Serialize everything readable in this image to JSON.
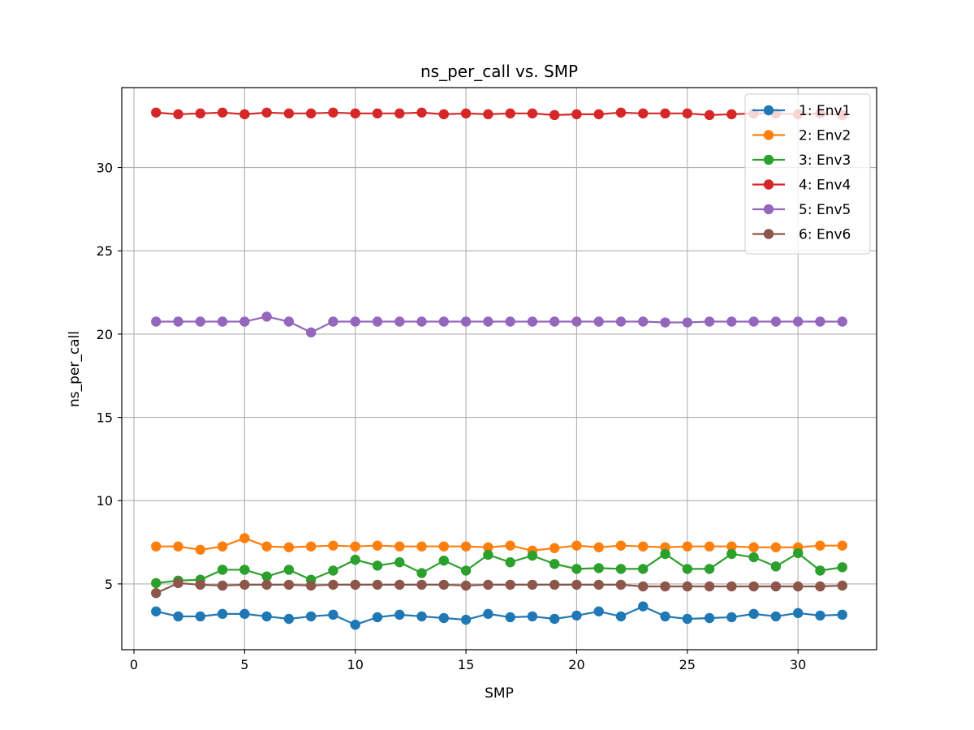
{
  "chart_data": {
    "type": "line",
    "title": "ns_per_call vs. SMP",
    "xlabel": "SMP",
    "ylabel": "ns_per_call",
    "xlim": [
      -0.55,
      33.55
    ],
    "ylim": [
      1.05,
      34.8
    ],
    "xticks": [
      0,
      5,
      10,
      15,
      20,
      25,
      30
    ],
    "yticks": [
      5,
      10,
      15,
      20,
      25,
      30
    ],
    "grid": true,
    "legend_position": "top-right",
    "markers": "circle",
    "x": [
      1,
      2,
      3,
      4,
      5,
      6,
      7,
      8,
      9,
      10,
      11,
      12,
      13,
      14,
      15,
      16,
      17,
      18,
      19,
      20,
      21,
      22,
      23,
      24,
      25,
      26,
      27,
      28,
      29,
      30,
      31,
      32
    ],
    "series": [
      {
        "name": "1: Env1",
        "color": "#1f77b4",
        "values": [
          3.35,
          3.05,
          3.05,
          3.2,
          3.2,
          3.05,
          2.9,
          3.05,
          3.15,
          2.55,
          3.0,
          3.15,
          3.05,
          2.95,
          2.85,
          3.2,
          3.0,
          3.05,
          2.9,
          3.1,
          3.35,
          3.05,
          3.65,
          3.05,
          2.9,
          2.95,
          3.0,
          3.2,
          3.05,
          3.25,
          3.1,
          3.15
        ]
      },
      {
        "name": "2: Env2",
        "color": "#ff7f0e",
        "values": [
          7.25,
          7.25,
          7.05,
          7.25,
          7.75,
          7.25,
          7.2,
          7.25,
          7.3,
          7.25,
          7.3,
          7.25,
          7.25,
          7.25,
          7.25,
          7.2,
          7.3,
          7.0,
          7.15,
          7.3,
          7.2,
          7.3,
          7.25,
          7.2,
          7.25,
          7.25,
          7.25,
          7.2,
          7.2,
          7.2,
          7.3,
          7.3
        ]
      },
      {
        "name": "3: Env3",
        "color": "#2ca02c",
        "values": [
          5.05,
          5.2,
          5.25,
          5.85,
          5.85,
          5.45,
          5.85,
          5.25,
          5.8,
          6.45,
          6.1,
          6.3,
          5.65,
          6.4,
          5.8,
          6.75,
          6.3,
          6.7,
          6.2,
          5.9,
          5.95,
          5.9,
          5.9,
          6.8,
          5.9,
          5.9,
          6.8,
          6.6,
          6.05,
          6.85,
          5.8,
          6.0
        ]
      },
      {
        "name": "4: Env4",
        "color": "#d62728",
        "values": [
          33.3,
          33.2,
          33.25,
          33.3,
          33.2,
          33.3,
          33.25,
          33.25,
          33.3,
          33.25,
          33.25,
          33.25,
          33.3,
          33.2,
          33.25,
          33.2,
          33.25,
          33.25,
          33.15,
          33.2,
          33.2,
          33.3,
          33.25,
          33.25,
          33.25,
          33.15,
          33.2,
          33.25,
          33.25,
          33.2,
          33.25,
          33.15
        ]
      },
      {
        "name": "5: Env5",
        "color": "#9467bd",
        "values": [
          20.75,
          20.75,
          20.75,
          20.75,
          20.75,
          21.05,
          20.75,
          20.1,
          20.75,
          20.75,
          20.75,
          20.75,
          20.75,
          20.75,
          20.75,
          20.75,
          20.75,
          20.75,
          20.75,
          20.75,
          20.75,
          20.75,
          20.75,
          20.7,
          20.7,
          20.75,
          20.75,
          20.75,
          20.75,
          20.75,
          20.75,
          20.75
        ]
      },
      {
        "name": "6: Env6",
        "color": "#8c564b",
        "values": [
          4.45,
          5.05,
          4.95,
          4.9,
          4.95,
          4.95,
          4.95,
          4.9,
          4.95,
          4.95,
          4.95,
          4.95,
          4.95,
          4.95,
          4.9,
          4.95,
          4.95,
          4.95,
          4.95,
          4.95,
          4.95,
          4.95,
          4.85,
          4.85,
          4.85,
          4.85,
          4.85,
          4.85,
          4.85,
          4.85,
          4.85,
          4.9
        ]
      }
    ]
  }
}
